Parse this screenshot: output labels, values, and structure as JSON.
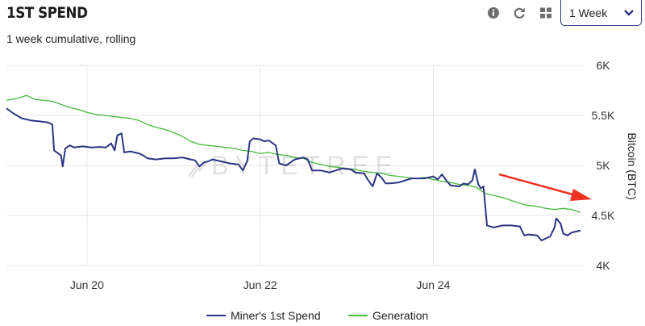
{
  "header": {
    "title": "1ST SPEND",
    "subtitle": "1 week cumulative, rolling",
    "info_icon": "info-icon",
    "refresh_icon": "refresh-icon",
    "grid_icon": "grid-icon",
    "range_label": "1 Week",
    "dropdown_icon": "chevron-down-icon"
  },
  "watermark": "BYTETREE",
  "colors": {
    "spend": "#2c3585",
    "generation": "#44bb3a",
    "arrow": "#ee3322",
    "grid": "#e6e6e6"
  },
  "chart_data": {
    "type": "line",
    "xlabel": "",
    "ylabel": "Bitcoin (BTC)",
    "x_unit": "days since Jun 18 00:00",
    "xlim": [
      0.57,
      7.2
    ],
    "ylim": [
      4000,
      6000
    ],
    "x_ticks": [
      {
        "x": 1.5,
        "label": "Jun 20"
      },
      {
        "x": 3.5,
        "label": "Jun 22"
      },
      {
        "x": 5.5,
        "label": "Jun 24"
      }
    ],
    "y_ticks": [
      {
        "y": 4000,
        "label": "4K"
      },
      {
        "y": 4500,
        "label": "4.5K"
      },
      {
        "y": 5000,
        "label": "5K"
      },
      {
        "y": 5500,
        "label": "5.5K"
      },
      {
        "y": 6000,
        "label": "6K"
      }
    ],
    "grid": true,
    "legend_position": "bottom",
    "annotation": "red arrow pointing down toward recent values",
    "series": [
      {
        "name": "Miner's 1st Spend",
        "color": "#2c3585",
        "points": [
          [
            0.57,
            5570
          ],
          [
            0.65,
            5520
          ],
          [
            0.75,
            5470
          ],
          [
            0.85,
            5450
          ],
          [
            0.95,
            5440
          ],
          [
            1.05,
            5430
          ],
          [
            1.1,
            5410
          ],
          [
            1.12,
            5150
          ],
          [
            1.2,
            5100
          ],
          [
            1.22,
            4990
          ],
          [
            1.25,
            5170
          ],
          [
            1.3,
            5200
          ],
          [
            1.35,
            5180
          ],
          [
            1.45,
            5190
          ],
          [
            1.55,
            5180
          ],
          [
            1.65,
            5185
          ],
          [
            1.72,
            5180
          ],
          [
            1.78,
            5220
          ],
          [
            1.82,
            5150
          ],
          [
            1.85,
            5300
          ],
          [
            1.9,
            5320
          ],
          [
            1.93,
            5130
          ],
          [
            2.0,
            5140
          ],
          [
            2.1,
            5120
          ],
          [
            2.15,
            5100
          ],
          [
            2.2,
            5070
          ],
          [
            2.3,
            5060
          ],
          [
            2.4,
            5070
          ],
          [
            2.5,
            5070
          ],
          [
            2.6,
            5080
          ],
          [
            2.7,
            5060
          ],
          [
            2.75,
            5050
          ],
          [
            2.8,
            4990
          ],
          [
            2.85,
            5030
          ],
          [
            2.9,
            5040
          ],
          [
            2.95,
            5060
          ],
          [
            3.05,
            5040
          ],
          [
            3.15,
            5020
          ],
          [
            3.25,
            5010
          ],
          [
            3.3,
            4950
          ],
          [
            3.35,
            5040
          ],
          [
            3.38,
            5240
          ],
          [
            3.42,
            5270
          ],
          [
            3.5,
            5260
          ],
          [
            3.55,
            5240
          ],
          [
            3.6,
            5250
          ],
          [
            3.68,
            5200
          ],
          [
            3.72,
            5020
          ],
          [
            3.8,
            5000
          ],
          [
            3.9,
            5060
          ],
          [
            4.0,
            5080
          ],
          [
            4.05,
            5060
          ],
          [
            4.1,
            4950
          ],
          [
            4.2,
            4950
          ],
          [
            4.3,
            4930
          ],
          [
            4.45,
            4970
          ],
          [
            4.55,
            4960
          ],
          [
            4.6,
            4930
          ],
          [
            4.7,
            4920
          ],
          [
            4.75,
            4850
          ],
          [
            4.8,
            4790
          ],
          [
            4.85,
            4920
          ],
          [
            4.9,
            4880
          ],
          [
            4.95,
            4820
          ],
          [
            5.0,
            4820
          ],
          [
            5.1,
            4830
          ],
          [
            5.25,
            4870
          ],
          [
            5.4,
            4870
          ],
          [
            5.5,
            4890
          ],
          [
            5.55,
            4860
          ],
          [
            5.6,
            4910
          ],
          [
            5.65,
            4850
          ],
          [
            5.7,
            4800
          ],
          [
            5.8,
            4790
          ],
          [
            5.85,
            4820
          ],
          [
            5.9,
            4810
          ],
          [
            5.95,
            4850
          ],
          [
            5.98,
            4960
          ],
          [
            6.02,
            4810
          ],
          [
            6.05,
            4770
          ],
          [
            6.08,
            4790
          ],
          [
            6.12,
            4400
          ],
          [
            6.2,
            4380
          ],
          [
            6.3,
            4400
          ],
          [
            6.4,
            4400
          ],
          [
            6.5,
            4390
          ],
          [
            6.55,
            4300
          ],
          [
            6.6,
            4310
          ],
          [
            6.7,
            4300
          ],
          [
            6.75,
            4250
          ],
          [
            6.8,
            4270
          ],
          [
            6.85,
            4290
          ],
          [
            6.9,
            4380
          ],
          [
            6.92,
            4470
          ],
          [
            6.97,
            4420
          ],
          [
            7.0,
            4320
          ],
          [
            7.05,
            4300
          ],
          [
            7.1,
            4330
          ],
          [
            7.2,
            4350
          ]
        ]
      },
      {
        "name": "Generation",
        "color": "#44bb3a",
        "points": [
          [
            0.57,
            5650
          ],
          [
            0.7,
            5670
          ],
          [
            0.8,
            5700
          ],
          [
            0.9,
            5660
          ],
          [
            1.0,
            5650
          ],
          [
            1.1,
            5640
          ],
          [
            1.2,
            5610
          ],
          [
            1.3,
            5580
          ],
          [
            1.4,
            5560
          ],
          [
            1.5,
            5530
          ],
          [
            1.6,
            5510
          ],
          [
            1.7,
            5500
          ],
          [
            1.8,
            5490
          ],
          [
            1.9,
            5480
          ],
          [
            2.0,
            5470
          ],
          [
            2.1,
            5450
          ],
          [
            2.2,
            5410
          ],
          [
            2.3,
            5380
          ],
          [
            2.4,
            5360
          ],
          [
            2.5,
            5330
          ],
          [
            2.6,
            5290
          ],
          [
            2.7,
            5240
          ],
          [
            2.8,
            5210
          ],
          [
            2.9,
            5200
          ],
          [
            3.0,
            5190
          ],
          [
            3.1,
            5180
          ],
          [
            3.2,
            5170
          ],
          [
            3.3,
            5150
          ],
          [
            3.4,
            5140
          ],
          [
            3.5,
            5120
          ],
          [
            3.6,
            5130
          ],
          [
            3.7,
            5110
          ],
          [
            3.8,
            5100
          ],
          [
            3.9,
            5080
          ],
          [
            4.0,
            5070
          ],
          [
            4.1,
            5030
          ],
          [
            4.2,
            5010
          ],
          [
            4.3,
            4990
          ],
          [
            4.4,
            4980
          ],
          [
            4.5,
            4970
          ],
          [
            4.6,
            4960
          ],
          [
            4.7,
            4940
          ],
          [
            4.8,
            4930
          ],
          [
            4.9,
            4920
          ],
          [
            5.0,
            4900
          ],
          [
            5.1,
            4890
          ],
          [
            5.2,
            4880
          ],
          [
            5.3,
            4870
          ],
          [
            5.4,
            4880
          ],
          [
            5.5,
            4860
          ],
          [
            5.6,
            4840
          ],
          [
            5.7,
            4830
          ],
          [
            5.8,
            4810
          ],
          [
            5.9,
            4800
          ],
          [
            6.0,
            4780
          ],
          [
            6.1,
            4720
          ],
          [
            6.2,
            4700
          ],
          [
            6.3,
            4680
          ],
          [
            6.4,
            4650
          ],
          [
            6.5,
            4620
          ],
          [
            6.6,
            4600
          ],
          [
            6.7,
            4590
          ],
          [
            6.8,
            4570
          ],
          [
            6.9,
            4560
          ],
          [
            7.0,
            4570
          ],
          [
            7.1,
            4560
          ],
          [
            7.2,
            4530
          ]
        ]
      }
    ]
  }
}
